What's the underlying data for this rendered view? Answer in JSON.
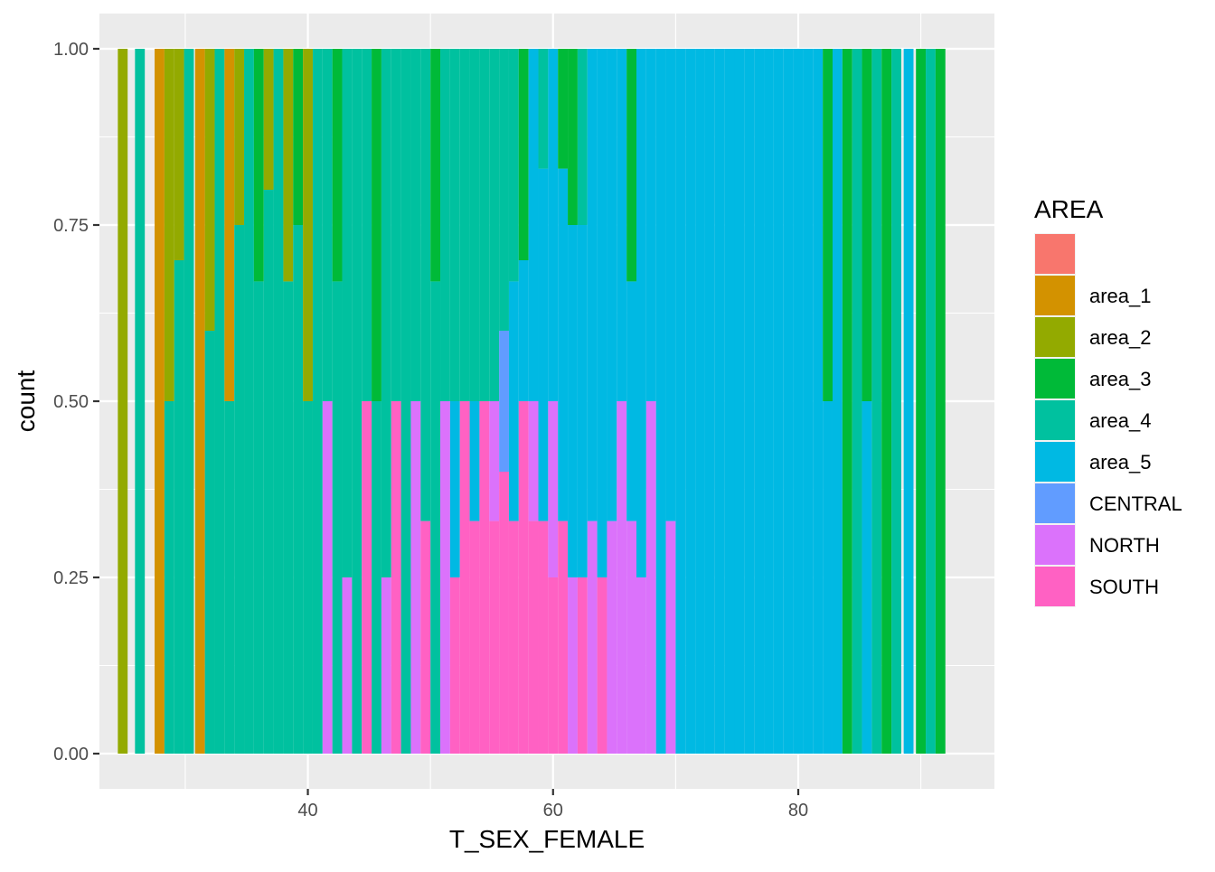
{
  "chart_data": {
    "type": "bar",
    "subtype": "filled stacked histogram (proportion)",
    "xlabel": "T_SEX_FEMALE",
    "ylabel": "count",
    "xlim": [
      23,
      96
    ],
    "ylim": [
      -0.05,
      1.05
    ],
    "x_ticks": [
      40,
      60,
      80
    ],
    "x_tick_labels": [
      "40",
      "60",
      "80"
    ],
    "y_ticks": [
      0,
      0.25,
      0.5,
      0.75,
      1
    ],
    "y_tick_labels": [
      "0.00",
      "0.25",
      "0.50",
      "0.75",
      "1.00"
    ],
    "grid": true,
    "legend": {
      "title": "AREA",
      "position": "right",
      "entries": [
        {
          "label": "",
          "color": "#F8766D"
        },
        {
          "label": "area_1",
          "color": "#D39200"
        },
        {
          "label": "area_2",
          "color": "#93AA00"
        },
        {
          "label": "area_3",
          "color": "#00BA38"
        },
        {
          "label": "area_4",
          "color": "#00C19F"
        },
        {
          "label": "area_5",
          "color": "#00B9E3"
        },
        {
          "label": "CENTRAL",
          "color": "#619CFF"
        },
        {
          "label": "NORTH",
          "color": "#DB72FB"
        },
        {
          "label": "SOUTH",
          "color": "#FF61C3"
        }
      ]
    },
    "series_order_bottom_to_top": [
      "SOUTH",
      "NORTH",
      "CENTRAL",
      "area_5",
      "area_4",
      "area_3",
      "area_2",
      "area_1"
    ],
    "bins": [
      {
        "x": 24.9,
        "area_2": 1
      },
      {
        "x": 26.3,
        "area_4": 1
      },
      {
        "x": 27.9,
        "area_1": 1
      },
      {
        "x": 28.7,
        "area_2": 0.5,
        "area_4": 0.5
      },
      {
        "x": 29.5,
        "area_4": 0.7,
        "area_2": 0.3
      },
      {
        "x": 30.3,
        "area_4": 1
      },
      {
        "x": 31.2,
        "area_1": 1
      },
      {
        "x": 32.0,
        "area_4": 0.6,
        "area_2": 0.4
      },
      {
        "x": 32.8,
        "area_4": 1
      },
      {
        "x": 33.6,
        "area_4": 0.5,
        "area_1": 0.5
      },
      {
        "x": 34.4,
        "area_4": 0.75,
        "area_2": 0.25
      },
      {
        "x": 35.2,
        "area_4": 1
      },
      {
        "x": 36.0,
        "area_4": 0.67,
        "area_3": 0.33
      },
      {
        "x": 36.8,
        "area_4": 0.8,
        "area_2": 0.2
      },
      {
        "x": 37.6,
        "area_4": 1
      },
      {
        "x": 38.4,
        "area_4": 0.67,
        "area_2": 0.33
      },
      {
        "x": 39.2,
        "area_4": 0.75,
        "area_3": 0.25
      },
      {
        "x": 40.0,
        "area_4": 0.5,
        "area_2": 0.5
      },
      {
        "x": 40.8,
        "area_4": 1
      },
      {
        "x": 41.6,
        "area_4": 0.5,
        "NORTH": 0.5
      },
      {
        "x": 42.4,
        "area_4": 0.67,
        "area_3": 0.33
      },
      {
        "x": 43.2,
        "NORTH": 0.25,
        "area_4": 0.75
      },
      {
        "x": 44.0,
        "area_4": 1
      },
      {
        "x": 44.8,
        "SOUTH": 0.5,
        "area_4": 0.5
      },
      {
        "x": 45.6,
        "area_4": 0.5,
        "area_3": 0.5
      },
      {
        "x": 46.4,
        "NORTH": 0.25,
        "area_4": 0.75
      },
      {
        "x": 47.2,
        "SOUTH": 0.5,
        "area_4": 0.5
      },
      {
        "x": 48.0,
        "area_4": 1
      },
      {
        "x": 48.8,
        "NORTH": 0.5,
        "area_4": 0.5
      },
      {
        "x": 49.6,
        "SOUTH": 0.33,
        "area_4": 0.67
      },
      {
        "x": 50.4,
        "area_4": 0.67,
        "area_3": 0.33
      },
      {
        "x": 51.2,
        "NORTH": 0.5,
        "area_4": 0.5
      },
      {
        "x": 52.0,
        "SOUTH": 0.25,
        "area_5": 0.25,
        "area_4": 0.5
      },
      {
        "x": 52.8,
        "SOUTH": 0.5,
        "area_4": 0.5
      },
      {
        "x": 53.6,
        "SOUTH": 0.33,
        "area_5": 0.17,
        "area_4": 0.5
      },
      {
        "x": 54.4,
        "SOUTH": 0.5,
        "area_4": 0.5
      },
      {
        "x": 55.2,
        "SOUTH": 0.33,
        "NORTH": 0.17,
        "area_4": 0.5
      },
      {
        "x": 56.0,
        "SOUTH": 0.4,
        "CENTRAL": 0.2,
        "area_4": 0.4
      },
      {
        "x": 56.8,
        "SOUTH": 0.33,
        "area_5": 0.34,
        "area_4": 0.33
      },
      {
        "x": 57.6,
        "SOUTH": 0.5,
        "area_5": 0.2,
        "area_3": 0.3
      },
      {
        "x": 58.4,
        "SOUTH": 0.33,
        "NORTH": 0.17,
        "area_5": 0.5
      },
      {
        "x": 59.2,
        "SOUTH": 0.33,
        "area_5": 0.5,
        "area_4": 0.17
      },
      {
        "x": 60.0,
        "SOUTH": 0.25,
        "NORTH": 0.25,
        "area_5": 0.5
      },
      {
        "x": 60.8,
        "SOUTH": 0.33,
        "area_5": 0.5,
        "area_3": 0.17
      },
      {
        "x": 61.6,
        "NORTH": 0.25,
        "area_5": 0.5,
        "area_3": 0.25
      },
      {
        "x": 62.4,
        "SOUTH": 0.25,
        "area_5": 0.5,
        "area_4": 0.25
      },
      {
        "x": 63.2,
        "NORTH": 0.33,
        "area_5": 0.67
      },
      {
        "x": 64.0,
        "SOUTH": 0.25,
        "area_5": 0.75
      },
      {
        "x": 64.8,
        "NORTH": 0.33,
        "area_5": 0.67
      },
      {
        "x": 65.6,
        "NORTH": 0.5,
        "area_5": 0.5
      },
      {
        "x": 66.4,
        "NORTH": 0.33,
        "area_5": 0.34,
        "area_3": 0.33
      },
      {
        "x": 67.2,
        "NORTH": 0.25,
        "area_5": 0.75
      },
      {
        "x": 68.0,
        "NORTH": 0.5,
        "area_5": 0.5
      },
      {
        "x": 68.8,
        "area_5": 1
      },
      {
        "x": 69.6,
        "NORTH": 0.33,
        "area_5": 0.67
      },
      {
        "x": 70.4,
        "area_5": 1
      },
      {
        "x": 71.2,
        "area_5": 1
      },
      {
        "x": 72.0,
        "area_5": 1
      },
      {
        "x": 72.8,
        "area_5": 1
      },
      {
        "x": 73.6,
        "area_5": 1
      },
      {
        "x": 74.4,
        "area_5": 1
      },
      {
        "x": 75.2,
        "area_5": 1
      },
      {
        "x": 76.0,
        "area_5": 1
      },
      {
        "x": 76.8,
        "area_5": 1
      },
      {
        "x": 77.6,
        "area_5": 1
      },
      {
        "x": 78.4,
        "area_5": 1
      },
      {
        "x": 79.2,
        "area_5": 1
      },
      {
        "x": 80.0,
        "area_5": 1
      },
      {
        "x": 80.8,
        "area_5": 1
      },
      {
        "x": 81.6,
        "area_5": 1
      },
      {
        "x": 82.4,
        "area_5": 0.5,
        "area_3": 0.5
      },
      {
        "x": 83.2,
        "area_5": 1
      },
      {
        "x": 84.0,
        "area_3": 1
      },
      {
        "x": 84.8,
        "area_4": 1
      },
      {
        "x": 85.6,
        "area_5": 0.5,
        "area_3": 0.5
      },
      {
        "x": 86.4,
        "area_4": 1
      },
      {
        "x": 87.2,
        "area_3": 1
      },
      {
        "x": 88.0,
        "area_4": 1
      },
      {
        "x": 89.0,
        "area_5": 1
      },
      {
        "x": 90.0,
        "area_3": 1
      },
      {
        "x": 90.8,
        "area_4": 1
      },
      {
        "x": 91.6,
        "area_3": 1
      }
    ]
  }
}
